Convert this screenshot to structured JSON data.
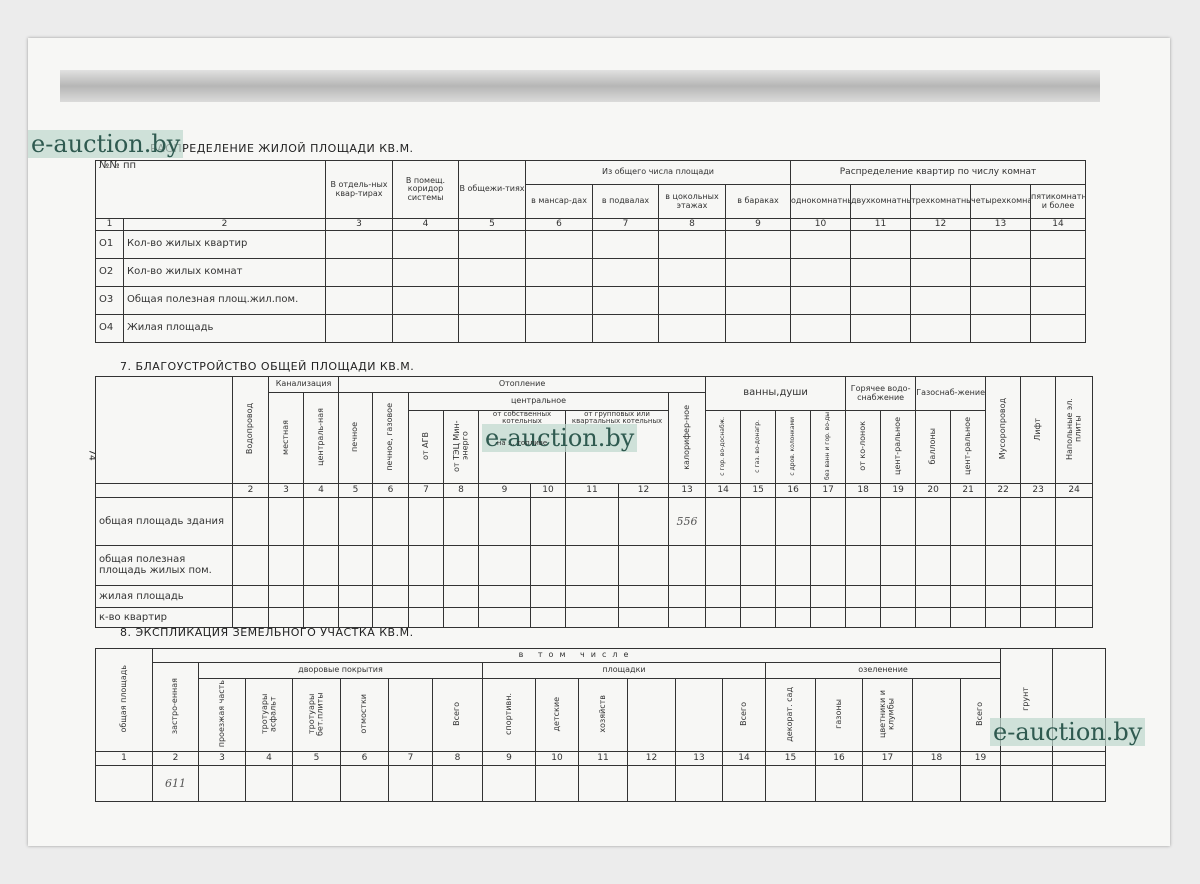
{
  "watermark": "e-auction.by",
  "page_marker": "74",
  "section6": {
    "title": "РАСПРЕДЕЛЕНИЕ ЖИЛОЙ ПЛОЩАДИ  КВ.М.",
    "headers": {
      "num": "№№ пп",
      "separate": "В отдель-ных квар-тирах",
      "corridor": "В помещ. коридор системы",
      "dorm": "В общежи-тиях",
      "of_total": "Из общего числа площади",
      "attic": "в мансар-дах",
      "basement": "в подвалах",
      "plinth": "в цокольных этажах",
      "barracks": "в бараках",
      "distribution": "Распределение квартир по числу комнат",
      "one": "однокомнатные",
      "two": "двухкомнатные",
      "three": "трехкомнатные",
      "four": "четырехкомнатные",
      "five": "пятикомнатные и более"
    },
    "col_numbers": [
      "1",
      "2",
      "3",
      "4",
      "5",
      "6",
      "7",
      "8",
      "9",
      "10",
      "11",
      "12",
      "13",
      "14"
    ],
    "rows": [
      {
        "code": "О1",
        "label": "Кол-во жилых квартир"
      },
      {
        "code": "О2",
        "label": "Кол-во жилых комнат"
      },
      {
        "code": "О3",
        "label": "Общая полезная площ.жил.пом."
      },
      {
        "code": "О4",
        "label": "Жилая площадь"
      }
    ]
  },
  "section7": {
    "title": "7. БЛАГОУСТРОЙСТВО ОБЩЕЙ ПЛОЩАДИ КВ.М.",
    "headers": {
      "water": "Водопровод",
      "sewer": "Канализация",
      "sewer_local": "местная",
      "sewer_central": "централь-ная",
      "heating": "Отопление",
      "stove": "печное",
      "stove_gas": "печное, газовое",
      "central": "центральное",
      "agv": "от АГВ",
      "tec": "от ТЭЦ Мин-энерго",
      "own_boiler": "от собственных котельных",
      "own_boiler_sub": "на ... топливе",
      "group_boiler": "от групповых или квартальных котельных",
      "calorifer": "калорифер-ное",
      "baths": "ванны,души",
      "bath_hot": "с гор. во-доснабж.",
      "bath_gas": "с газ. во-донагр.",
      "bath_wood": "с дров. колонками",
      "bath_none": "без ванн и гор. во-ды",
      "hot_water": "Горячее водо-снабжение",
      "hw_col": "от ко-лонок",
      "hw_central": "цент-ральное",
      "gas": "Газоснаб-жение",
      "gas_bal": "баллоны",
      "gas_central": "цент-ральное",
      "garbage": "Мусоропровод",
      "lift": "Лифт",
      "stoves": "Напольные эл. плиты"
    },
    "col_numbers": [
      "2",
      "3",
      "4",
      "5",
      "6",
      "7",
      "8",
      "9",
      "10",
      "11",
      "12",
      "13",
      "14",
      "15",
      "16",
      "17",
      "18",
      "19",
      "20",
      "21",
      "22",
      "23",
      "24"
    ],
    "rows": [
      {
        "label": "общая площадь здания",
        "value_col13": "556"
      },
      {
        "label": "общая полезная площадь жилых пом."
      },
      {
        "label": "жилая площадь"
      },
      {
        "label": "к-во квартир"
      }
    ]
  },
  "section8": {
    "title": "8. ЭКСПЛИКАЦИЯ ЗЕМЕЛЬНОГО УЧАСТКА КВ.М.",
    "headers": {
      "total": "общая площадь",
      "including": "в   том   числе",
      "built": "застро-енная",
      "yard": "дворовые   покрытия",
      "road": "проезжая часть",
      "walk_asph": "тротуары асфальт",
      "walk_conc": "тротуары бет.плиты",
      "blind": "отмостки",
      "yard_total": "Всего",
      "areas": "площадки",
      "sport": "спортивн.",
      "kids": "детские",
      "house": "хозяйств",
      "areas_total": "Всего",
      "green": "озеленение",
      "garden": "декорат. сад",
      "lawn": "газоны",
      "flowers": "цветники и клумбы",
      "green_total": "Всего",
      "soil": "грунт"
    },
    "col_numbers": [
      "1",
      "2",
      "3",
      "4",
      "5",
      "6",
      "7",
      "8",
      "9",
      "10",
      "11",
      "12",
      "13",
      "14",
      "15",
      "16",
      "17",
      "18",
      "19",
      "",
      ""
    ],
    "values": {
      "built": "611"
    }
  }
}
